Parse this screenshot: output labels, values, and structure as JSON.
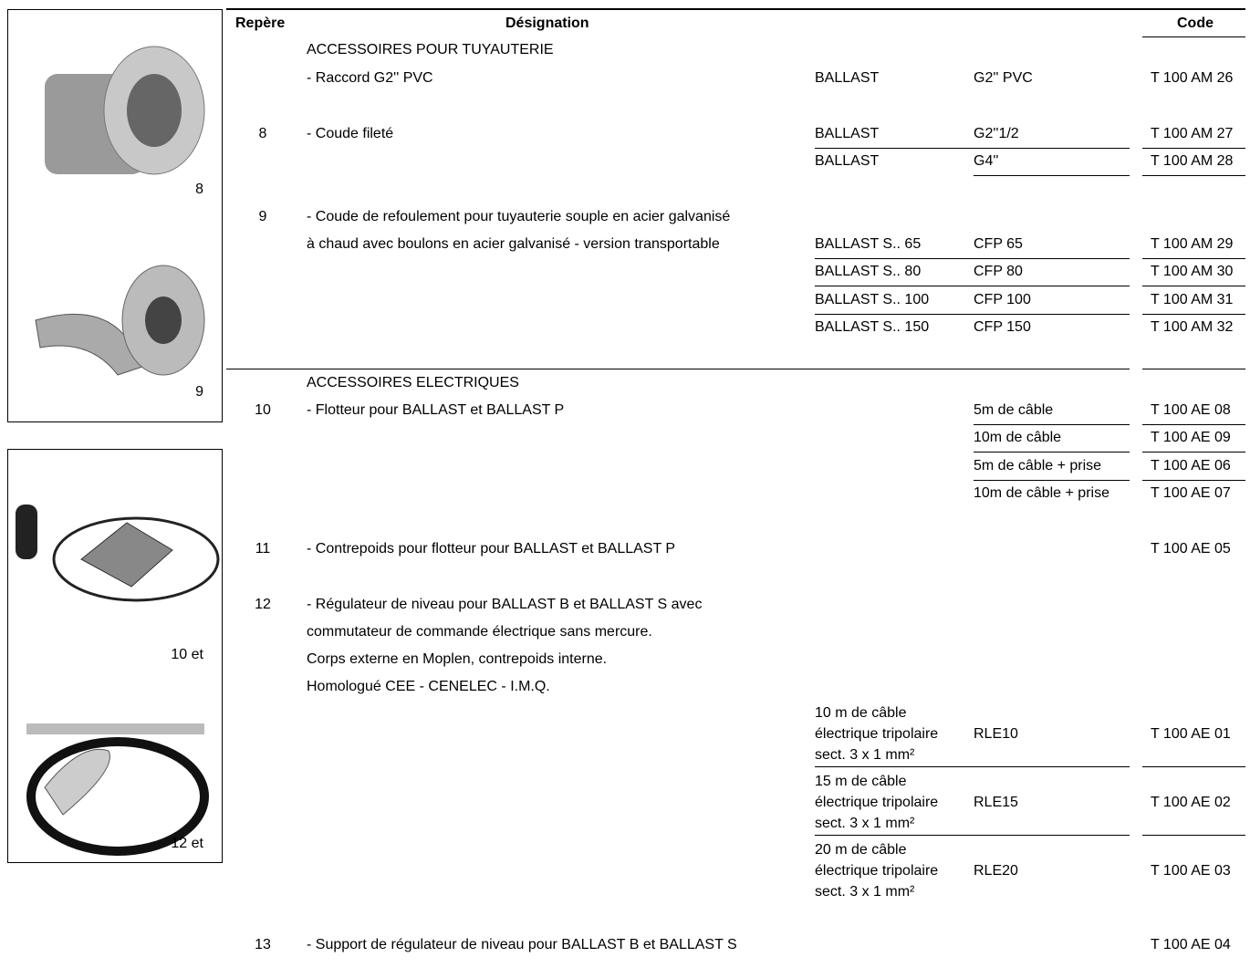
{
  "header": {
    "ref": "Repère",
    "designation": "Désignation",
    "code": "Code"
  },
  "images": [
    {
      "caption": "8"
    },
    {
      "caption": "9"
    },
    {
      "caption": "10 et"
    },
    {
      "caption": "12 et"
    }
  ],
  "rows": [
    {
      "text": "ACCESSOIRES POUR TUYAUTERIE"
    },
    {
      "text": "- Raccord G2'' PVC",
      "col1": [
        "BALLAST"
      ],
      "col2": "G2'' PVC",
      "code": "T 100 AM 26"
    },
    {
      "ref": "8",
      "text": "- Coude fileté",
      "col1": [
        "BALLAST"
      ],
      "col2": "G2''1/2",
      "code": "T 100 AM 27"
    },
    {
      "col1": [
        "BALLAST"
      ],
      "col2": "G4''",
      "code": "T 100 AM 28"
    },
    {
      "ref": "9",
      "text": "- Coude de refoulement  pour tuyauterie souple en acier galvanisé"
    },
    {
      "text": "à chaud avec boulons en acier galvanisé - version transportable",
      "col1": [
        "BALLAST S.. 65"
      ],
      "col2": "CFP 65",
      "code": "T 100 AM 29"
    },
    {
      "col1": [
        "BALLAST S.. 80"
      ],
      "col2": "CFP 80",
      "code": "T 100 AM 30"
    },
    {
      "col1": [
        "BALLAST S.. 100"
      ],
      "col2": "CFP 100",
      "code": "T 100 AM 31"
    },
    {
      "col1": [
        "BALLAST S.. 150"
      ],
      "col2": "CFP 150",
      "code": "T 100 AM 32"
    },
    {
      "text": "ACCESSOIRES ELECTRIQUES"
    },
    {
      "ref": "10",
      "text": "- Flotteur pour BALLAST et BALLAST P",
      "col2": "5m de câble",
      "code": "T 100 AE 08"
    },
    {
      "col2": "10m de câble",
      "code": "T 100 AE 09"
    },
    {
      "col2": "5m de câble + prise",
      "code": "T 100 AE 06"
    },
    {
      "col2": "10m de câble + prise",
      "code": "T 100 AE 07"
    },
    {
      "ref": "11",
      "text": "- Contrepoids pour flotteur pour BALLAST et BALLAST P",
      "code": "T 100 AE 05"
    },
    {
      "ref": "12",
      "text": "- Régulateur de niveau pour BALLAST B et BALLAST S avec"
    },
    {
      "text": "commutateur de commande électrique sans mercure."
    },
    {
      "text": "Corps externe en Moplen, contrepoids interne."
    },
    {
      "text": "Homologué CEE - CENELEC - I.M.Q."
    },
    {
      "col1": [
        "10 m de câble",
        "électrique tripolaire",
        "sect. 3 x 1 mm²"
      ],
      "col2": "RLE10",
      "code": "T 100 AE 01"
    },
    {
      "col1": [
        "15 m de câble",
        "électrique tripolaire",
        "sect. 3 x 1 mm²"
      ],
      "col2": "RLE15",
      "code": "T 100 AE 02"
    },
    {
      "col1": [
        "20 m de câble",
        "électrique tripolaire",
        "sect. 3 x 1 mm²"
      ],
      "col2": "RLE20",
      "code": "T 100 AE 03"
    },
    {
      "ref": "13",
      "text": "- Support de régulateur de niveau pour BALLAST B et BALLAST S",
      "code": "T 100 AE 04"
    }
  ]
}
